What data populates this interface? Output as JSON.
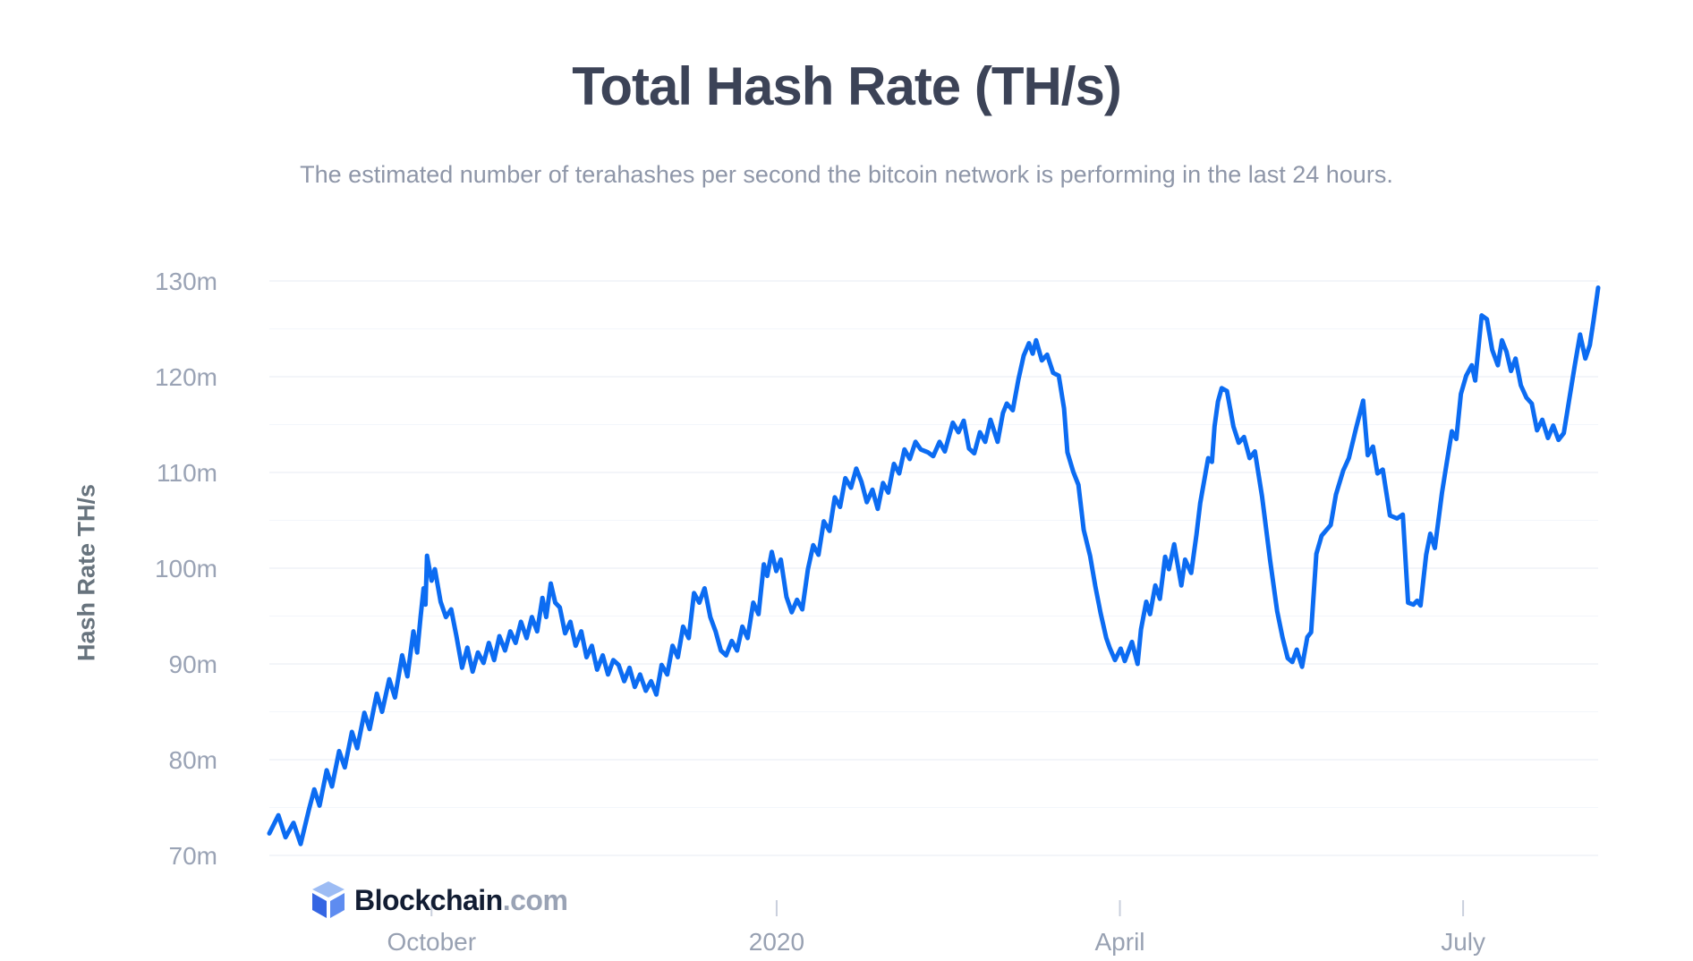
{
  "header": {
    "title": "Total Hash Rate (TH/s)",
    "subtitle": "The estimated number of terahashes per second the bitcoin network is performing in the last 24 hours."
  },
  "watermark": {
    "brand": "Blockchain",
    "suffix": ".com"
  },
  "colors": {
    "series": "#0C6CF2",
    "grid_major": "#e7ebf3",
    "grid_minor": "#f3f6fb",
    "tick": "#c9cfdc",
    "title": "#3c4357",
    "subtitle": "#8e96a8",
    "axis_label": "#9aa3b5",
    "brand_dark": "#121d33",
    "logo_top": "#9dbcf4",
    "logo_left": "#3566e3",
    "logo_right": "#5e8cf0"
  },
  "chart_data": {
    "type": "line",
    "title": "Total Hash Rate (TH/s)",
    "xlabel": "",
    "ylabel": "Hash Rate TH/s",
    "y_unit_suffix": "m",
    "ylim": [
      70,
      130
    ],
    "y_major_step": 10,
    "y_minor_step": 5,
    "grid": "on",
    "legend": "none",
    "x_range": [
      0,
      352.3
    ],
    "x_ticks": [
      {
        "d": 43,
        "label": "October"
      },
      {
        "d": 134.5,
        "label": "2020"
      },
      {
        "d": 225.5,
        "label": "April"
      },
      {
        "d": 316.5,
        "label": "July"
      }
    ],
    "points": [
      [
        0,
        72.3
      ],
      [
        2.4,
        74.2
      ],
      [
        4.3,
        71.9
      ],
      [
        6.4,
        73.4
      ],
      [
        8.3,
        71.2
      ],
      [
        10.5,
        74.8
      ],
      [
        11.9,
        76.9
      ],
      [
        13.3,
        75.2
      ],
      [
        15.2,
        78.9
      ],
      [
        16.6,
        77.2
      ],
      [
        18.5,
        80.9
      ],
      [
        20,
        79.2
      ],
      [
        21.9,
        82.9
      ],
      [
        23.3,
        81.2
      ],
      [
        25.2,
        84.9
      ],
      [
        26.6,
        83.2
      ],
      [
        28.5,
        86.9
      ],
      [
        29.9,
        85
      ],
      [
        31.8,
        88.4
      ],
      [
        33.3,
        86.5
      ],
      [
        35.2,
        90.9
      ],
      [
        36.6,
        88.7
      ],
      [
        38.2,
        93.4
      ],
      [
        39.2,
        91.2
      ],
      [
        40.1,
        94.9
      ],
      [
        40.9,
        97.9
      ],
      [
        41.4,
        96.2
      ],
      [
        41.8,
        101.3
      ],
      [
        43,
        98.7
      ],
      [
        43.9,
        99.9
      ],
      [
        45.4,
        96.5
      ],
      [
        46.8,
        94.9
      ],
      [
        48.2,
        95.7
      ],
      [
        49.6,
        92.9
      ],
      [
        51.1,
        89.6
      ],
      [
        52.5,
        91.7
      ],
      [
        53.9,
        89.2
      ],
      [
        55.3,
        91.2
      ],
      [
        56.8,
        90.1
      ],
      [
        58.2,
        92.2
      ],
      [
        59.6,
        90.4
      ],
      [
        61,
        92.9
      ],
      [
        62.5,
        91.4
      ],
      [
        63.9,
        93.4
      ],
      [
        65.3,
        92.2
      ],
      [
        66.7,
        94.4
      ],
      [
        68.2,
        92.7
      ],
      [
        69.6,
        94.9
      ],
      [
        71,
        93.4
      ],
      [
        72.4,
        96.9
      ],
      [
        73.4,
        94.9
      ],
      [
        74.6,
        98.4
      ],
      [
        75.8,
        96.4
      ],
      [
        77,
        95.9
      ],
      [
        78.4,
        93.2
      ],
      [
        79.8,
        94.4
      ],
      [
        81.2,
        91.9
      ],
      [
        82.7,
        93.4
      ],
      [
        84.1,
        90.7
      ],
      [
        85.5,
        91.9
      ],
      [
        86.9,
        89.4
      ],
      [
        88.4,
        90.9
      ],
      [
        89.8,
        88.9
      ],
      [
        91.2,
        90.4
      ],
      [
        92.6,
        89.9
      ],
      [
        94.1,
        88.2
      ],
      [
        95.5,
        89.6
      ],
      [
        96.9,
        87.6
      ],
      [
        98.3,
        88.9
      ],
      [
        99.8,
        87.2
      ],
      [
        101.2,
        88.2
      ],
      [
        102.6,
        86.8
      ],
      [
        104,
        89.9
      ],
      [
        105.5,
        88.9
      ],
      [
        106.9,
        91.9
      ],
      [
        108.3,
        90.7
      ],
      [
        109.7,
        93.9
      ],
      [
        111.2,
        92.7
      ],
      [
        112.6,
        97.4
      ],
      [
        114,
        96.4
      ],
      [
        115.4,
        97.9
      ],
      [
        116.9,
        94.9
      ],
      [
        118.3,
        93.4
      ],
      [
        119.7,
        91.4
      ],
      [
        121.1,
        90.9
      ],
      [
        122.6,
        92.4
      ],
      [
        124,
        91.4
      ],
      [
        125.4,
        93.9
      ],
      [
        126.8,
        92.7
      ],
      [
        128.3,
        96.4
      ],
      [
        129.7,
        95.2
      ],
      [
        131.1,
        100.4
      ],
      [
        132,
        99.2
      ],
      [
        133.2,
        101.7
      ],
      [
        134.4,
        99.7
      ],
      [
        135.6,
        100.9
      ],
      [
        137.1,
        97
      ],
      [
        138.5,
        95.4
      ],
      [
        139.9,
        96.7
      ],
      [
        141.3,
        95.7
      ],
      [
        142.8,
        99.9
      ],
      [
        144.2,
        102.4
      ],
      [
        145.6,
        101.4
      ],
      [
        147,
        104.9
      ],
      [
        148.5,
        103.9
      ],
      [
        149.9,
        107.4
      ],
      [
        151.3,
        106.4
      ],
      [
        152.7,
        109.4
      ],
      [
        154.2,
        108.4
      ],
      [
        155.6,
        110.4
      ],
      [
        157,
        109
      ],
      [
        158.4,
        106.9
      ],
      [
        159.9,
        108.2
      ],
      [
        161.3,
        106.2
      ],
      [
        162.7,
        108.9
      ],
      [
        164.1,
        107.9
      ],
      [
        165.6,
        110.9
      ],
      [
        167,
        109.9
      ],
      [
        168.4,
        112.4
      ],
      [
        169.8,
        111.4
      ],
      [
        171.3,
        113.2
      ],
      [
        172.7,
        112.4
      ],
      [
        174.6,
        112.1
      ],
      [
        176,
        111.7
      ],
      [
        177.7,
        113.2
      ],
      [
        179.1,
        112.2
      ],
      [
        181.2,
        115.2
      ],
      [
        182.7,
        114.2
      ],
      [
        184.1,
        115.4
      ],
      [
        185.5,
        112.5
      ],
      [
        186.9,
        112
      ],
      [
        188.4,
        114.2
      ],
      [
        189.8,
        113.2
      ],
      [
        191.2,
        115.5
      ],
      [
        193.1,
        113.2
      ],
      [
        194.5,
        116.2
      ],
      [
        195.5,
        117.2
      ],
      [
        197.1,
        116.5
      ],
      [
        198.6,
        119.7
      ],
      [
        200,
        122.2
      ],
      [
        201.4,
        123.5
      ],
      [
        202.4,
        122.4
      ],
      [
        203.3,
        123.8
      ],
      [
        204.8,
        121.7
      ],
      [
        206.2,
        122.3
      ],
      [
        207.8,
        120.4
      ],
      [
        209.3,
        120.1
      ],
      [
        210.7,
        116.7
      ],
      [
        211.6,
        112.1
      ],
      [
        213.1,
        110.1
      ],
      [
        214.5,
        108.7
      ],
      [
        215.9,
        104
      ],
      [
        217.6,
        101.3
      ],
      [
        219,
        98.1
      ],
      [
        220.4,
        95.3
      ],
      [
        221.9,
        92.7
      ],
      [
        222.8,
        91.7
      ],
      [
        224.2,
        90.4
      ],
      [
        225.7,
        91.6
      ],
      [
        226.8,
        90.3
      ],
      [
        228.7,
        92.3
      ],
      [
        230.2,
        90
      ],
      [
        231.1,
        93.6
      ],
      [
        232.5,
        96.5
      ],
      [
        233.5,
        95.2
      ],
      [
        234.9,
        98.2
      ],
      [
        236.1,
        96.8
      ],
      [
        237.5,
        101.2
      ],
      [
        238.5,
        99.9
      ],
      [
        239.9,
        102.5
      ],
      [
        241.8,
        98.2
      ],
      [
        242.8,
        100.9
      ],
      [
        244.4,
        99.5
      ],
      [
        245.8,
        103.5
      ],
      [
        246.8,
        106.8
      ],
      [
        248,
        109.5
      ],
      [
        248.9,
        111.5
      ],
      [
        249.9,
        111.1
      ],
      [
        250.6,
        114.8
      ],
      [
        251.5,
        117.4
      ],
      [
        252.5,
        118.8
      ],
      [
        253.9,
        118.5
      ],
      [
        255.6,
        114.8
      ],
      [
        257,
        113.1
      ],
      [
        258.4,
        113.7
      ],
      [
        259.9,
        111.5
      ],
      [
        261.3,
        112.2
      ],
      [
        263.2,
        107.5
      ],
      [
        265.3,
        100.9
      ],
      [
        267.2,
        95.5
      ],
      [
        268.6,
        92.8
      ],
      [
        270,
        90.6
      ],
      [
        271.2,
        90.2
      ],
      [
        272.4,
        91.5
      ],
      [
        273.8,
        89.7
      ],
      [
        275.2,
        92.8
      ],
      [
        276.2,
        93.3
      ],
      [
        277.6,
        101.5
      ],
      [
        279,
        103.4
      ],
      [
        281.4,
        104.5
      ],
      [
        282.8,
        107.7
      ],
      [
        284.7,
        110.2
      ],
      [
        286.2,
        111.5
      ],
      [
        288.1,
        114.6
      ],
      [
        290,
        117.5
      ],
      [
        291.2,
        111.8
      ],
      [
        292.6,
        112.7
      ],
      [
        293.8,
        109.9
      ],
      [
        295.2,
        110.3
      ],
      [
        297.1,
        105.5
      ],
      [
        299,
        105.2
      ],
      [
        300.5,
        105.6
      ],
      [
        301.9,
        96.4
      ],
      [
        303.3,
        96.2
      ],
      [
        304.3,
        96.6
      ],
      [
        305.2,
        96.1
      ],
      [
        306.7,
        101.4
      ],
      [
        307.8,
        103.6
      ],
      [
        309,
        102.1
      ],
      [
        310.9,
        107.9
      ],
      [
        312.1,
        110.9
      ],
      [
        313.5,
        114.3
      ],
      [
        314.7,
        113.5
      ],
      [
        315.9,
        118.2
      ],
      [
        317.3,
        120.1
      ],
      [
        318.8,
        121.2
      ],
      [
        319.7,
        119.6
      ],
      [
        321.4,
        126.4
      ],
      [
        322.8,
        126
      ],
      [
        324.2,
        122.8
      ],
      [
        325.7,
        121.2
      ],
      [
        326.8,
        123.8
      ],
      [
        328,
        122.6
      ],
      [
        329.2,
        120.6
      ],
      [
        330.4,
        121.9
      ],
      [
        331.8,
        119.1
      ],
      [
        333.3,
        117.8
      ],
      [
        334.7,
        117.2
      ],
      [
        336.1,
        114.4
      ],
      [
        337.5,
        115.5
      ],
      [
        339,
        113.6
      ],
      [
        340.4,
        114.9
      ],
      [
        341.8,
        113.4
      ],
      [
        343.2,
        114.1
      ],
      [
        344.7,
        117.8
      ],
      [
        346.1,
        121.2
      ],
      [
        347.5,
        124.4
      ],
      [
        348.9,
        121.9
      ],
      [
        350.1,
        123.3
      ],
      [
        351.1,
        125.9
      ],
      [
        352.3,
        129.3
      ]
    ]
  }
}
